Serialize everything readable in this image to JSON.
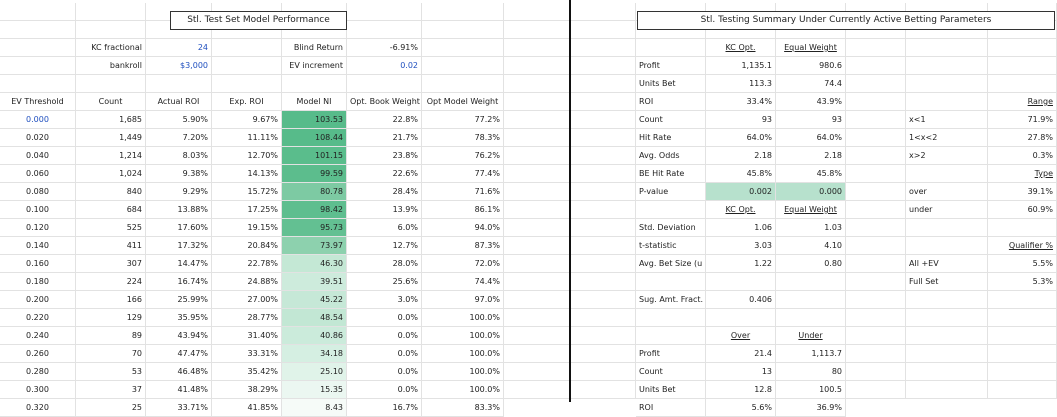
{
  "left": {
    "title": "Stl. Test Set Model Performance",
    "params": [
      {
        "label": "KC fractional",
        "value": "24"
      },
      {
        "label": "bankroll",
        "value": "$3,000"
      }
    ],
    "params2": [
      {
        "label": "Blind Return",
        "value": "-6.91%"
      },
      {
        "label": "EV increment",
        "value": "0.02"
      }
    ],
    "headers": [
      "EV Threshold",
      "Count",
      "Actual ROI",
      "Exp. ROI",
      "Model NI",
      "Opt. Book Weight",
      "Opt Model Weight"
    ],
    "rows": [
      [
        "0.000",
        "1,685",
        "5.90%",
        "9.67%",
        "103.53",
        "22.8%",
        "77.2%"
      ],
      [
        "0.020",
        "1,449",
        "7.20%",
        "11.11%",
        "108.44",
        "21.7%",
        "78.3%"
      ],
      [
        "0.040",
        "1,214",
        "8.03%",
        "12.70%",
        "101.15",
        "23.8%",
        "76.2%"
      ],
      [
        "0.060",
        "1,024",
        "9.38%",
        "14.13%",
        "99.59",
        "22.6%",
        "77.4%"
      ],
      [
        "0.080",
        "840",
        "9.29%",
        "15.72%",
        "80.78",
        "28.4%",
        "71.6%"
      ],
      [
        "0.100",
        "684",
        "13.88%",
        "17.25%",
        "98.42",
        "13.9%",
        "86.1%"
      ],
      [
        "0.120",
        "525",
        "17.60%",
        "19.15%",
        "95.73",
        "6.0%",
        "94.0%"
      ],
      [
        "0.140",
        "411",
        "17.32%",
        "20.84%",
        "73.97",
        "12.7%",
        "87.3%"
      ],
      [
        "0.160",
        "307",
        "14.47%",
        "22.78%",
        "46.30",
        "28.0%",
        "72.0%"
      ],
      [
        "0.180",
        "224",
        "16.74%",
        "24.88%",
        "39.51",
        "25.6%",
        "74.4%"
      ],
      [
        "0.200",
        "166",
        "25.99%",
        "27.00%",
        "45.22",
        "3.0%",
        "97.0%"
      ],
      [
        "0.220",
        "129",
        "35.95%",
        "28.77%",
        "48.54",
        "0.0%",
        "100.0%"
      ],
      [
        "0.240",
        "89",
        "43.94%",
        "31.40%",
        "40.86",
        "0.0%",
        "100.0%"
      ],
      [
        "0.260",
        "70",
        "47.47%",
        "33.31%",
        "34.18",
        "0.0%",
        "100.0%"
      ],
      [
        "0.280",
        "53",
        "46.48%",
        "35.42%",
        "25.10",
        "0.0%",
        "100.0%"
      ],
      [
        "0.300",
        "37",
        "41.48%",
        "38.29%",
        "15.35",
        "0.0%",
        "100.0%"
      ],
      [
        "0.320",
        "25",
        "33.71%",
        "41.85%",
        "8.43",
        "16.7%",
        "83.3%"
      ]
    ],
    "heat_colors": [
      "#57bb8a",
      "#57bb8a",
      "#5abd8c",
      "#5cbd8d",
      "#7dcaa3",
      "#5ebe8f",
      "#63c092",
      "#8dd1ae",
      "#c4e8d5",
      "#cdebdc",
      "#c6e8d7",
      "#c2e7d4",
      "#cbebdb",
      "#d5efe2",
      "#e0f3e9",
      "#ebf7f1",
      "#f6fbf8"
    ]
  },
  "right": {
    "title": "Stl. Testing Summary Under Currently Active Betting Parameters",
    "col_kc": "KC Opt.",
    "col_eq": "Equal Weight",
    "summary": [
      {
        "label": "Profit",
        "kc": "1,135.1",
        "eq": "980.6"
      },
      {
        "label": "Units Bet",
        "kc": "113.3",
        "eq": "74.4"
      },
      {
        "label": "ROI",
        "kc": "33.4%",
        "eq": "43.9%"
      },
      {
        "label": "Count",
        "kc": "93",
        "eq": "93"
      },
      {
        "label": "Hit Rate",
        "kc": "64.0%",
        "eq": "64.0%"
      },
      {
        "label": "Avg. Odds",
        "kc": "2.18",
        "eq": "2.18"
      },
      {
        "label": "BE Hit Rate",
        "kc": "45.8%",
        "eq": "45.8%"
      },
      {
        "label": "P-value",
        "kc": "0.002",
        "eq": "0.000"
      }
    ],
    "stats_kc": "KC Opt.",
    "stats_eq": "Equal Weight",
    "stats": [
      {
        "label": "Std. Deviation",
        "kc": "1.06",
        "eq": "1.03"
      },
      {
        "label": "t-statistic",
        "kc": "3.03",
        "eq": "4.10"
      },
      {
        "label": "Avg. Bet Size (u",
        "kc": "1.22",
        "eq": "0.80"
      }
    ],
    "sug_label": "Sug. Amt. Fract.",
    "sug_value": "0.406",
    "ou_over": "Over",
    "ou_under": "Under",
    "ou_rows": [
      {
        "label": "Profit",
        "over": "21.4",
        "under": "1,113.7"
      },
      {
        "label": "Count",
        "over": "13",
        "under": "80"
      },
      {
        "label": "Units Bet",
        "over": "12.8",
        "under": "100.5"
      },
      {
        "label": "ROI",
        "over": "5.6%",
        "under": "36.9%"
      }
    ],
    "range": {
      "header": "Range",
      "rows": [
        {
          "label": "x<1",
          "value": "71.9%"
        },
        {
          "label": "1<x<2",
          "value": "27.8%"
        },
        {
          "label": "x>2",
          "value": "0.3%"
        }
      ]
    },
    "type": {
      "header": "Type",
      "rows": [
        {
          "label": "over",
          "value": "39.1%"
        },
        {
          "label": "under",
          "value": "60.9%"
        }
      ]
    },
    "qualifier": {
      "header": "Qualifier %",
      "rows": [
        {
          "label": "All +EV",
          "value": "5.5%"
        },
        {
          "label": "Full Set",
          "value": "5.3%"
        }
      ]
    }
  }
}
